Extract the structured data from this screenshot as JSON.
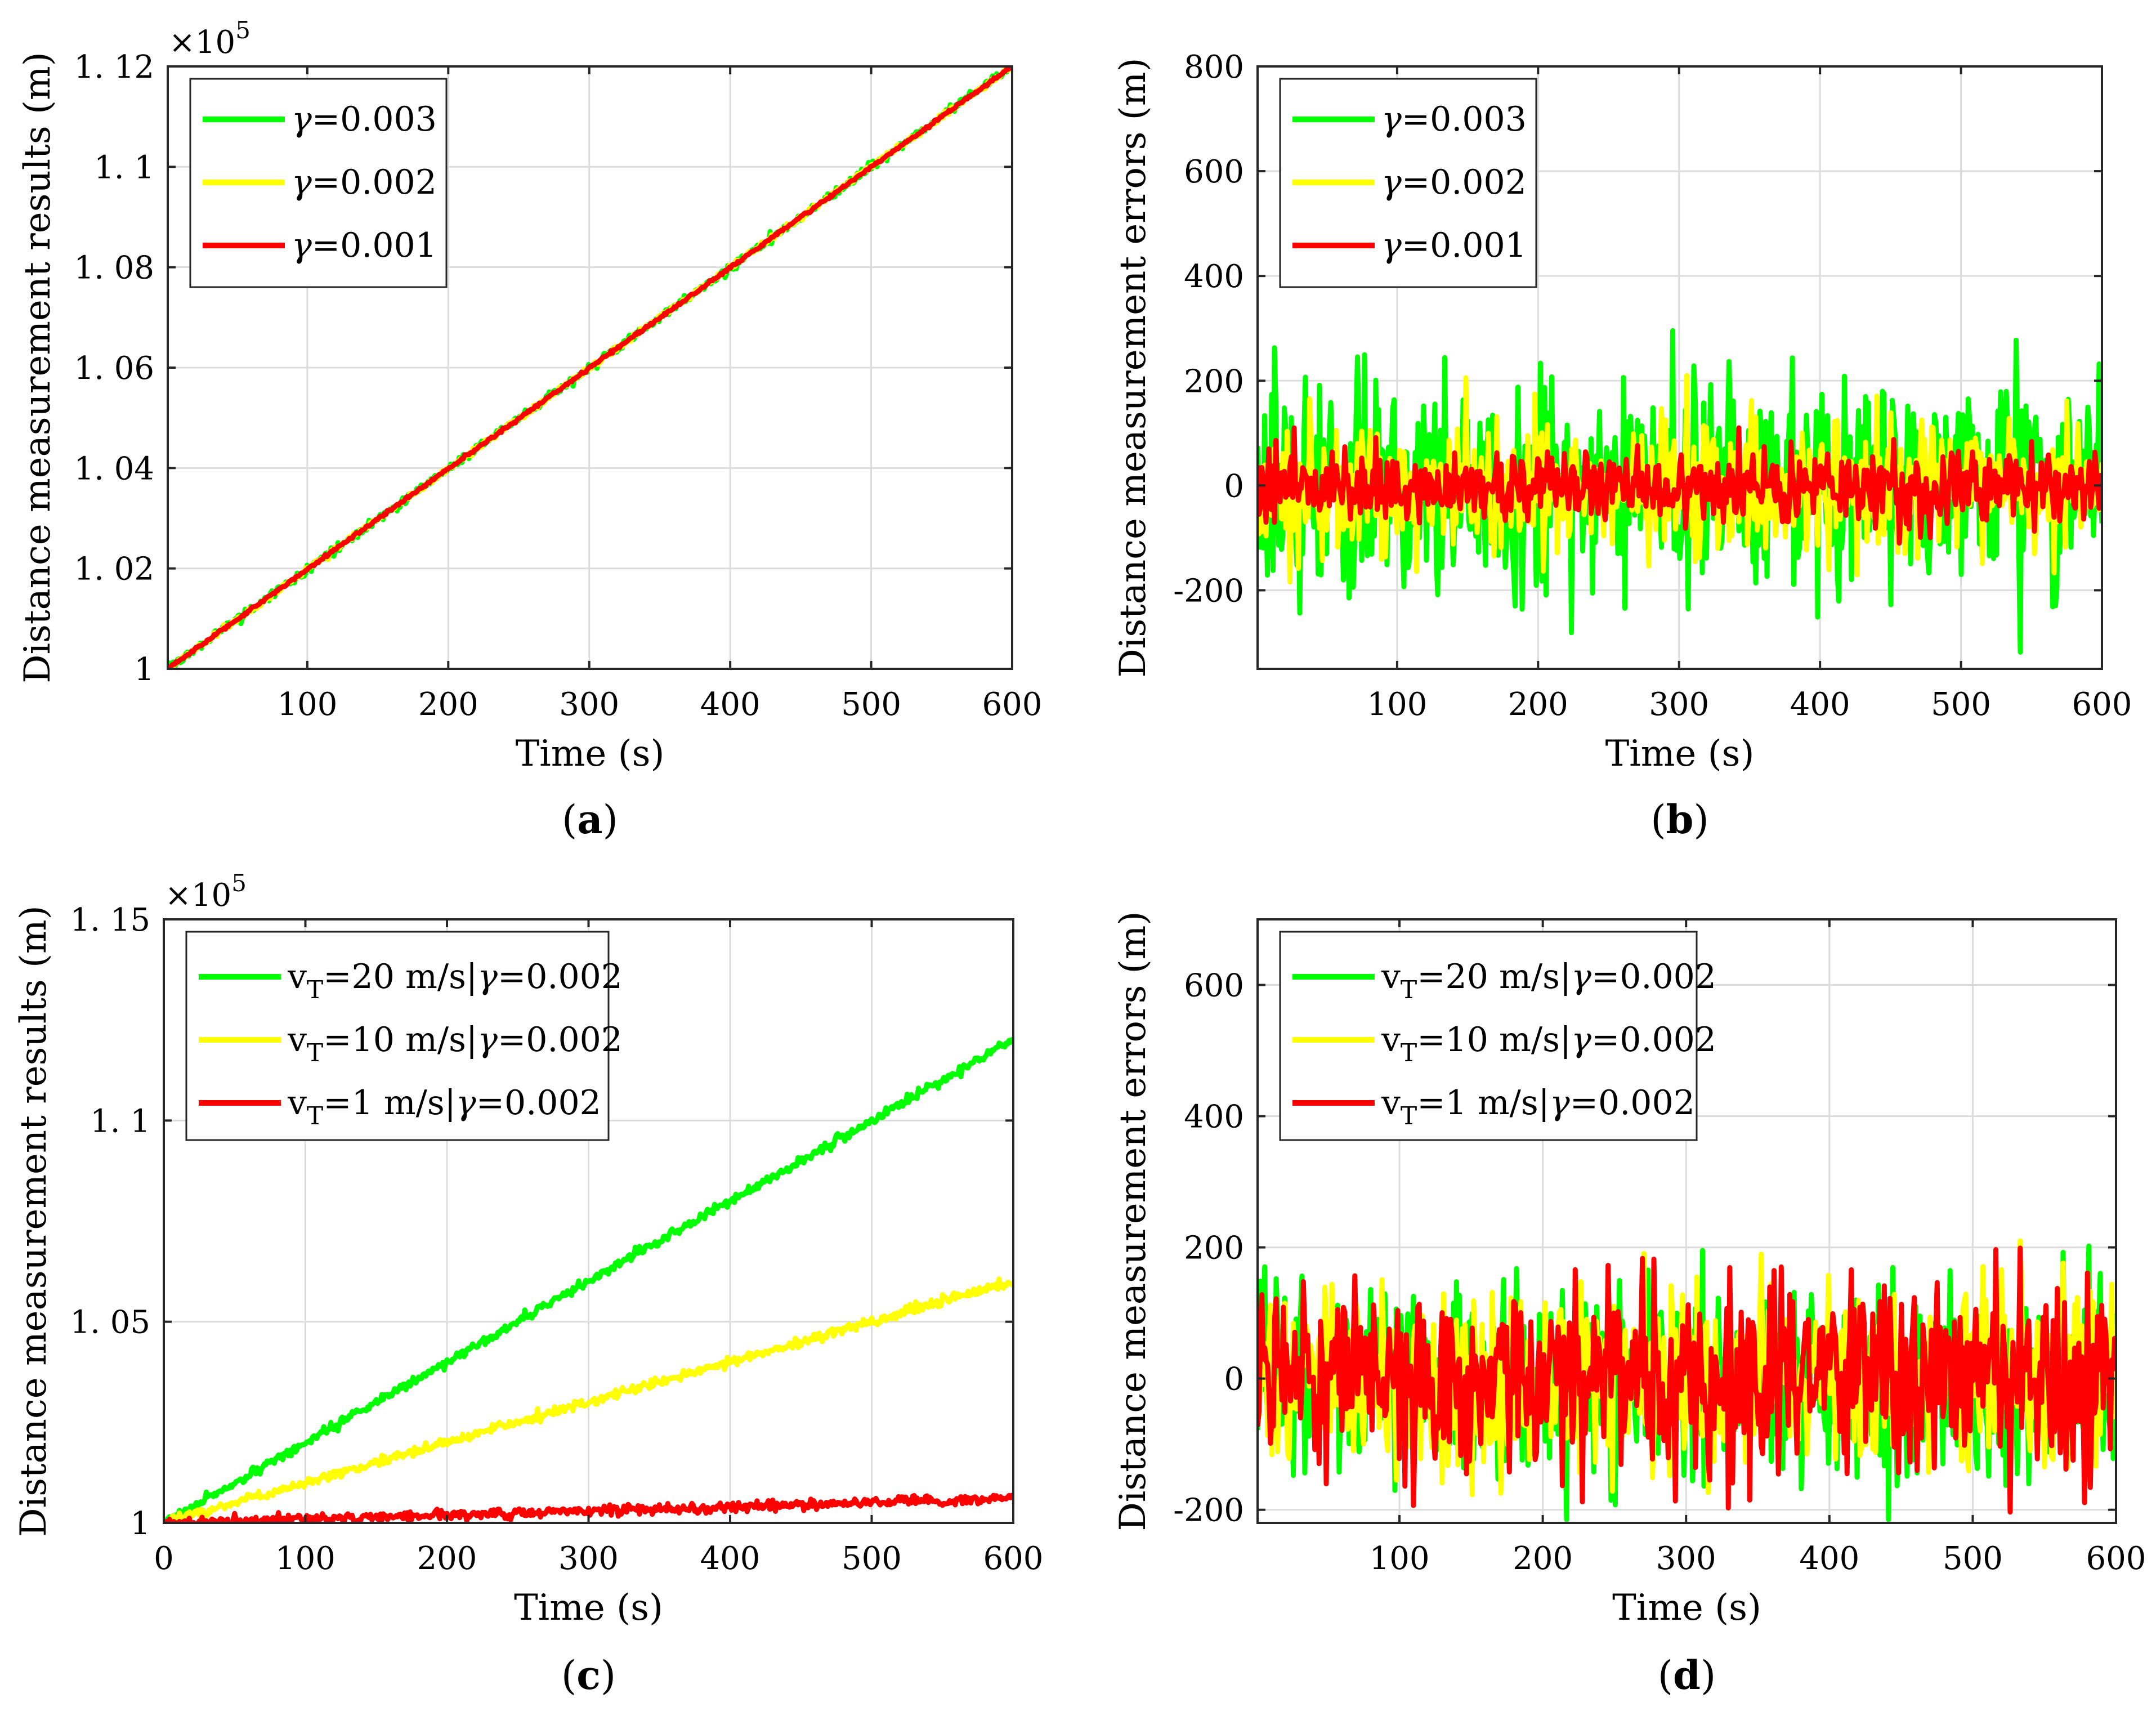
{
  "chart_data": [
    {
      "id": "a",
      "type": "line",
      "caption": "(a)",
      "caption_letter": "a",
      "xlabel": "Time (s)",
      "ylabel": "Distance measurement results (m)",
      "multiplier": "×10",
      "multiplier_exp": "5",
      "xlim": [
        1,
        600
      ],
      "ylim": [
        1.0,
        1.12
      ],
      "xticks": [
        100,
        200,
        300,
        400,
        500,
        600
      ],
      "xtick_labels": [
        "100",
        "200",
        "300",
        "400",
        "500",
        "600"
      ],
      "yticks": [
        1.0,
        1.02,
        1.04,
        1.06,
        1.08,
        1.1,
        1.12
      ],
      "ytick_labels": [
        "1",
        "1. 02",
        "1. 04",
        "1. 06",
        "1. 08",
        "1. 1",
        "1. 12"
      ],
      "grid": true,
      "legend_position": "top-left",
      "series": [
        {
          "name": "γ=0.003",
          "legend": {
            "sym": "γ",
            "text": "=0.003"
          },
          "color": "#00ff00",
          "start": 1.0,
          "end": 1.12,
          "noise_sd": 0.00045
        },
        {
          "name": "γ=0.002",
          "legend": {
            "sym": "γ",
            "text": "=0.002"
          },
          "color": "#ffff00",
          "start": 1.0,
          "end": 1.12,
          "noise_sd": 0.0003
        },
        {
          "name": "γ=0.001",
          "legend": {
            "sym": "γ",
            "text": "=0.001"
          },
          "color": "#ff0000",
          "start": 1.0,
          "end": 1.12,
          "noise_sd": 0.00015
        }
      ]
    },
    {
      "id": "b",
      "type": "line",
      "caption": "(b)",
      "caption_letter": "b",
      "xlabel": "Time (s)",
      "ylabel": "Distance measurement errors (m)",
      "xlim": [
        1,
        600
      ],
      "ylim": [
        -350,
        800
      ],
      "xticks": [
        100,
        200,
        300,
        400,
        500,
        600
      ],
      "xtick_labels": [
        "100",
        "200",
        "300",
        "400",
        "500",
        "600"
      ],
      "yticks": [
        -200,
        0,
        200,
        400,
        600,
        800
      ],
      "ytick_labels": [
        "-200",
        "0",
        "200",
        "400",
        "600",
        "800"
      ],
      "grid": true,
      "legend_position": "top-left",
      "series": [
        {
          "name": "γ=0.003",
          "legend": {
            "sym": "γ",
            "text": "=0.003"
          },
          "color": "#00ff00",
          "start": 0,
          "end": 0,
          "noise_sd": 105,
          "clip": [
            -320,
            320
          ]
        },
        {
          "name": "γ=0.002",
          "legend": {
            "sym": "γ",
            "text": "=0.002"
          },
          "color": "#ffff00",
          "start": 0,
          "end": 0,
          "noise_sd": 62,
          "clip": [
            -210,
            210
          ]
        },
        {
          "name": "γ=0.001",
          "legend": {
            "sym": "γ",
            "text": "=0.001"
          },
          "color": "#ff0000",
          "start": 0,
          "end": 0,
          "noise_sd": 35,
          "clip": [
            -110,
            110
          ]
        }
      ]
    },
    {
      "id": "c",
      "type": "line",
      "caption": "(c)",
      "caption_letter": "c",
      "xlabel": "Time (s)",
      "ylabel": "Distance measurement results (m)",
      "multiplier": "×10",
      "multiplier_exp": "5",
      "xlim": [
        0,
        600
      ],
      "ylim": [
        1.0,
        1.15
      ],
      "xticks": [
        0,
        100,
        200,
        300,
        400,
        500,
        600
      ],
      "xtick_labels": [
        "0",
        "100",
        "200",
        "300",
        "400",
        "500",
        "600"
      ],
      "yticks": [
        1.0,
        1.05,
        1.1,
        1.15
      ],
      "ytick_labels": [
        "1",
        "1. 05",
        "1. 1",
        "1. 15"
      ],
      "grid": true,
      "legend_position": "top-left",
      "series": [
        {
          "name": "vT=20 m/s|γ=0.002",
          "legend": {
            "v": "v",
            "sub": "T",
            "text": "=20 m/s|",
            "sym": "γ",
            "tail": "=0.002"
          },
          "color": "#00ff00",
          "start": 1.0,
          "end": 1.12,
          "noise_sd": 0.0006
        },
        {
          "name": "vT=10 m/s|γ=0.002",
          "legend": {
            "v": "v",
            "sub": "T",
            "text": "=10 m/s|",
            "sym": "γ",
            "tail": "=0.002"
          },
          "color": "#ffff00",
          "start": 1.0,
          "end": 1.06,
          "noise_sd": 0.0006
        },
        {
          "name": "vT=1 m/s|γ=0.002",
          "legend": {
            "v": "v",
            "sub": "T",
            "text": "=1 m/s|",
            "sym": "γ",
            "tail": "=0.002"
          },
          "color": "#ff0000",
          "start": 1.0,
          "end": 1.006,
          "noise_sd": 0.0006
        }
      ]
    },
    {
      "id": "d",
      "type": "line",
      "caption": "(d)",
      "caption_letter": "d",
      "xlabel": "Time (s)",
      "ylabel": "Distance measurement errors (m)",
      "xlim": [
        1,
        600
      ],
      "ylim": [
        -220,
        700
      ],
      "xticks": [
        100,
        200,
        300,
        400,
        500,
        600
      ],
      "xtick_labels": [
        "100",
        "200",
        "300",
        "400",
        "500",
        "600"
      ],
      "yticks": [
        -200,
        0,
        200,
        400,
        600
      ],
      "ytick_labels": [
        "-200",
        "0",
        "200",
        "400",
        "600"
      ],
      "grid": true,
      "legend_position": "top-left",
      "series": [
        {
          "name": "vT=20 m/s|γ=0.002",
          "legend": {
            "v": "v",
            "sub": "T",
            "text": "=20 m/s|",
            "sym": "γ",
            "tail": "=0.002"
          },
          "color": "#00ff00",
          "start": 0,
          "end": 0,
          "noise_sd": 72,
          "clip": [
            -215,
            225
          ]
        },
        {
          "name": "vT=10 m/s|γ=0.002",
          "legend": {
            "v": "v",
            "sub": "T",
            "text": "=10 m/s|",
            "sym": "γ",
            "tail": "=0.002"
          },
          "color": "#ffff00",
          "start": 0,
          "end": 0,
          "noise_sd": 72,
          "clip": [
            -215,
            210
          ]
        },
        {
          "name": "vT=1 m/s|γ=0.002",
          "legend": {
            "v": "v",
            "sub": "T",
            "text": "=1 m/s|",
            "sym": "γ",
            "tail": "=0.002"
          },
          "color": "#ff0000",
          "start": 0,
          "end": 0,
          "noise_sd": 72,
          "clip": [
            -210,
            205
          ]
        }
      ]
    }
  ]
}
